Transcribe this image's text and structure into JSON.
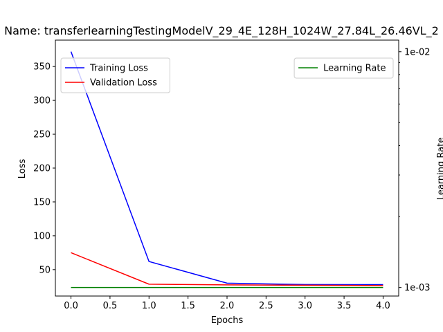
{
  "chart_data": {
    "type": "line",
    "title": "Name: transferlearningTestingModelV_29_4E_128H_1024W_27.84L_26.46VL_2",
    "xlabel": "Epochs",
    "ylabel": "Loss",
    "y2label": "Learning Rate",
    "x": [
      0,
      1,
      2,
      3,
      4
    ],
    "xlim": [
      -0.2,
      4.2
    ],
    "ylim": [
      11,
      389
    ],
    "y2lim": [
      0.00092,
      0.0112
    ],
    "y2scale": "log",
    "xticks": [
      0.0,
      0.5,
      1.0,
      1.5,
      2.0,
      2.5,
      3.0,
      3.5,
      4.0
    ],
    "xtick_labels": [
      "0.0",
      "0.5",
      "1.0",
      "1.5",
      "2.0",
      "2.5",
      "3.0",
      "3.5",
      "4.0"
    ],
    "yticks": [
      50,
      100,
      150,
      200,
      250,
      300,
      350
    ],
    "ytick_labels": [
      "50",
      "100",
      "150",
      "200",
      "250",
      "300",
      "350"
    ],
    "y2ticks_major": [
      0.001,
      0.01
    ],
    "y2tick_labels": [
      "1e-03",
      "1e-02"
    ],
    "y2ticks_minor": [
      0.002,
      0.003,
      0.004,
      0.005,
      0.006,
      0.007,
      0.008,
      0.009
    ],
    "grid": false,
    "series": [
      {
        "name": "Training Loss",
        "axis": "left",
        "color": "#0000ff",
        "values": [
          372,
          62,
          30,
          28,
          27.84
        ]
      },
      {
        "name": "Validation Loss",
        "axis": "left",
        "color": "#ff0000",
        "values": [
          75,
          28.5,
          27.5,
          27,
          26.46
        ]
      },
      {
        "name": "Learning Rate",
        "axis": "right",
        "color": "#008000",
        "values": [
          0.001,
          0.001,
          0.001,
          0.001,
          0.001
        ]
      }
    ],
    "legends": [
      {
        "position": "upper-left",
        "entries": [
          "Training Loss",
          "Validation Loss"
        ]
      },
      {
        "position": "upper-right",
        "entries": [
          "Learning Rate"
        ]
      }
    ]
  }
}
